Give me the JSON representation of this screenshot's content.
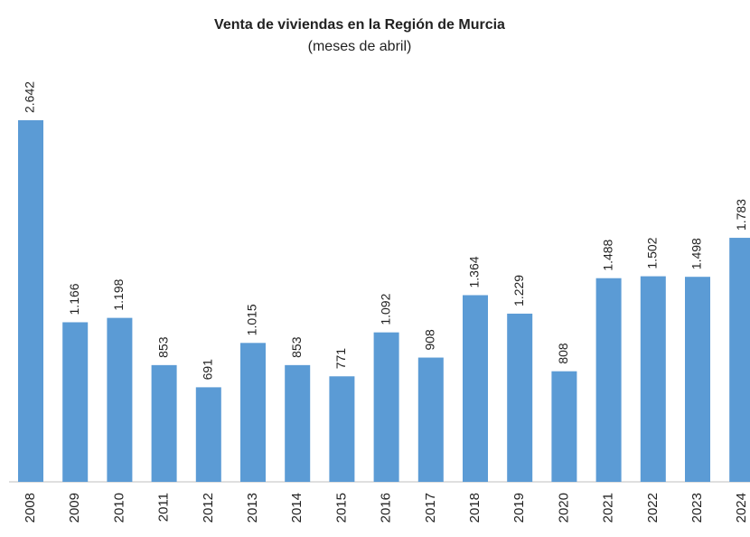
{
  "chart_data": {
    "type": "bar",
    "title": "Venta de viviendas en la Región de Murcia",
    "subtitle": "(meses de abril)",
    "categories": [
      "2008",
      "2009",
      "2010",
      "2011",
      "2012",
      "2013",
      "2014",
      "2015",
      "2016",
      "2017",
      "2018",
      "2019",
      "2020",
      "2021",
      "2022",
      "2023",
      "2024"
    ],
    "values": [
      2642,
      1166,
      1198,
      853,
      691,
      1015,
      853,
      771,
      1092,
      908,
      1364,
      1229,
      808,
      1488,
      1502,
      1498,
      1783
    ],
    "value_labels": [
      "2.642",
      "1.166",
      "1.198",
      "853",
      "691",
      "1.015",
      "853",
      "771",
      "1.092",
      "908",
      "1.364",
      "1.229",
      "808",
      "1.488",
      "1.502",
      "1.498",
      "1.783"
    ],
    "color": "#5b9bd5"
  }
}
